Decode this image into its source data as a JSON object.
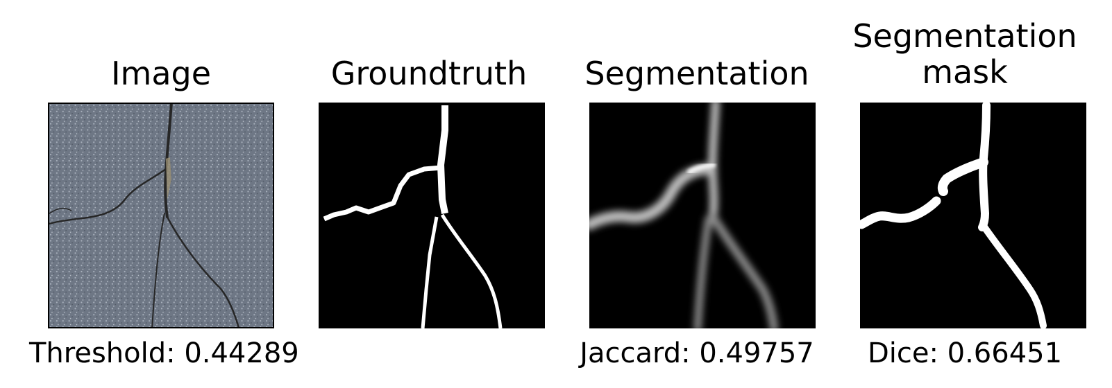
{
  "panels": [
    {
      "title": "Image",
      "caption": "Threshold: 0.44289"
    },
    {
      "title": "Groundtruth",
      "caption": ""
    },
    {
      "title": "Segmentation",
      "caption": "Jaccard: 0.49757"
    },
    {
      "title_line1": "Segmentation",
      "title_line2": "mask",
      "caption": "Dice: 0.66451"
    }
  ],
  "colors": {
    "asphalt": "#6f7886",
    "crack": "#2a2a2a",
    "mask_bg": "#000000",
    "mask_fg": "#ffffff"
  }
}
